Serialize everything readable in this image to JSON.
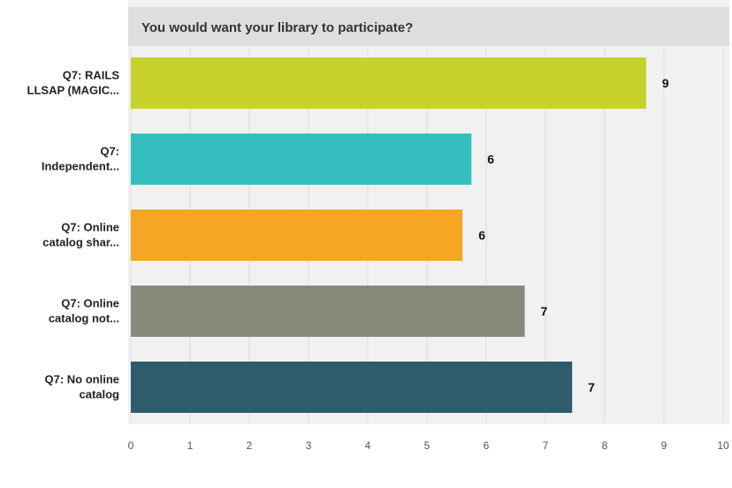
{
  "chart_data": {
    "type": "bar",
    "orientation": "horizontal",
    "title": "You would want your library to participate?",
    "categories": [
      [
        "Q7: RAILS",
        "LLSAP (MAGIC..."
      ],
      [
        "Q7:",
        "Independent..."
      ],
      [
        "Q7: Online",
        "catalog shar..."
      ],
      [
        "Q7: Online",
        "catalog not..."
      ],
      [
        "Q7: No online",
        "catalog"
      ]
    ],
    "values": [
      8.7,
      5.75,
      5.6,
      6.65,
      7.45
    ],
    "data_labels": [
      "9",
      "6",
      "6",
      "7",
      "7"
    ],
    "bar_colors": [
      "#c8d22d",
      "#35bfbf",
      "#f5a623",
      "#878a78",
      "#2e5c6a"
    ],
    "xlim": [
      0,
      10
    ],
    "xticks": [
      "0",
      "1",
      "2",
      "3",
      "4",
      "5",
      "6",
      "7",
      "8",
      "9",
      "10"
    ],
    "grid": true,
    "legend": "none",
    "xlabel": "",
    "ylabel": ""
  }
}
